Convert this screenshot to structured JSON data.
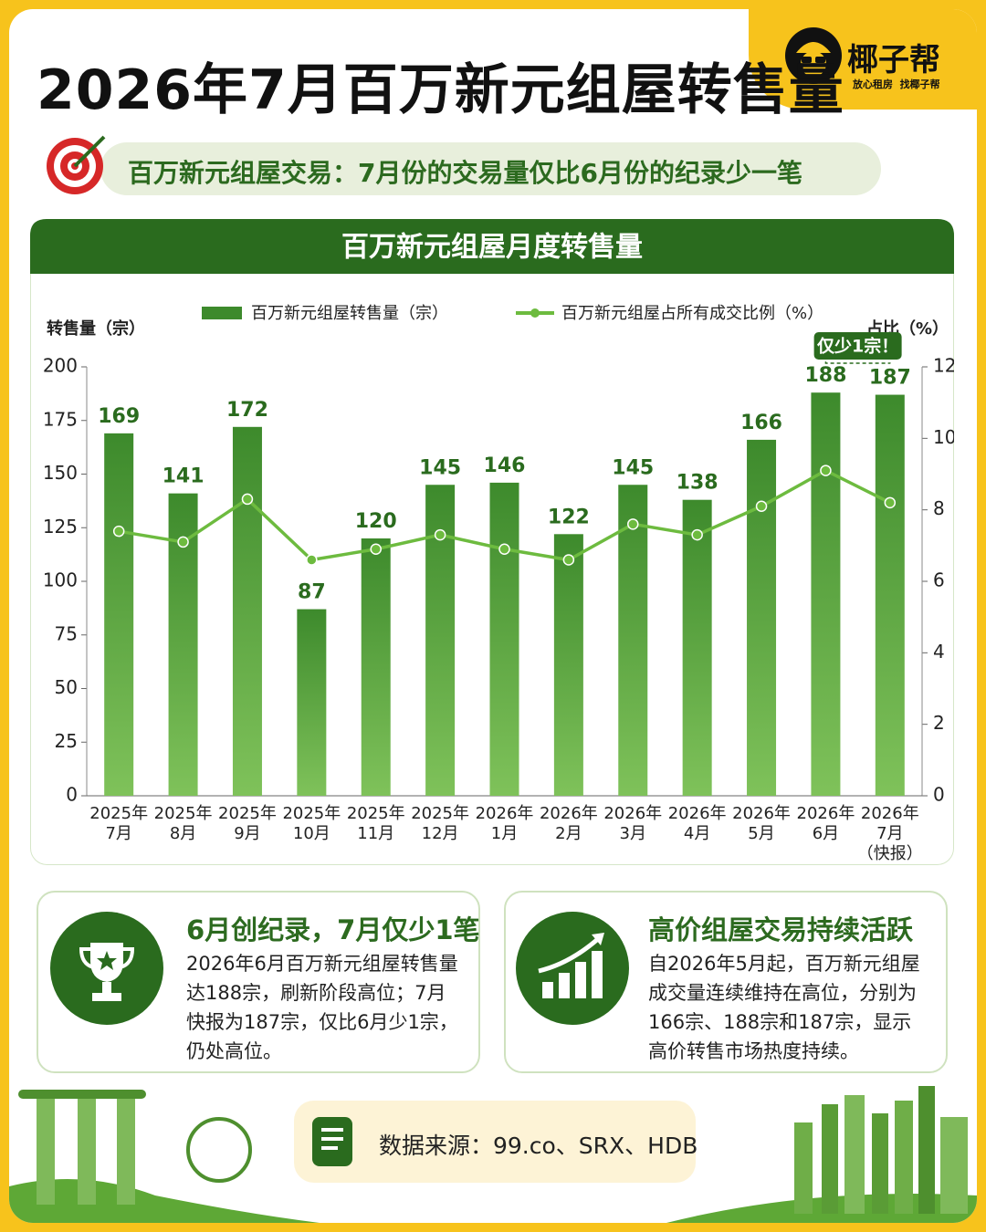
{
  "header": {
    "title": "2026年7月百万新元组屋转售量",
    "brand": "椰子帮",
    "slogan": "放心租房  找椰子帮"
  },
  "subtitle": "百万新元组屋交易：7月份的交易量仅比6月份的纪录少一笔",
  "chart_data": {
    "type": "bar-line",
    "title": "百万新元组屋月度转售量",
    "y_label": "转售量（宗）",
    "y2_label": "占比（%）",
    "categories": [
      "2025年\n7月",
      "2025年\n8月",
      "2025年\n9月",
      "2025年\n10月",
      "2025年\n11月",
      "2025年\n12月",
      "2026年\n1月",
      "2026年\n2月",
      "2026年\n3月",
      "2026年\n4月",
      "2026年\n5月",
      "2026年\n6月",
      "2026年\n7月\n（快报）"
    ],
    "series": [
      {
        "name": "百万新元组屋转售量（宗）",
        "color": "#3d8a2c",
        "values": [
          169,
          141,
          172,
          87,
          120,
          145,
          146,
          122,
          145,
          138,
          166,
          188,
          187
        ]
      },
      {
        "name": "百万新元组屋占所有成交比例（%）",
        "color": "#6dbb3f",
        "axis": "y2",
        "values": [
          7.4,
          7.1,
          8.3,
          6.6,
          6.9,
          7.3,
          6.9,
          6.6,
          7.6,
          7.3,
          8.1,
          9.1,
          8.2
        ]
      }
    ],
    "ylim": [
      0,
      200
    ],
    "yticks": [
      0,
      25,
      50,
      75,
      100,
      125,
      150,
      175,
      200
    ],
    "y2lim": [
      0,
      12
    ],
    "y2ticks": [
      0,
      2,
      4,
      6,
      8,
      10,
      12
    ],
    "annotation": "仅少1宗！"
  },
  "cards": [
    {
      "title": "6月创纪录，7月仅少1笔",
      "text": "2026年6月百万新元组屋转售量达188宗，刷新阶段高位；7月快报为187宗，仅比6月少1宗，仍处高位。"
    },
    {
      "title": "高价组屋交易持续活跃",
      "text": "自2026年5月起，百万新元组屋成交量连续维持在高位，分别为166宗、188宗和187宗，显示高价转售市场热度持续。"
    }
  ],
  "source": "数据来源：99.co、SRX、HDB"
}
